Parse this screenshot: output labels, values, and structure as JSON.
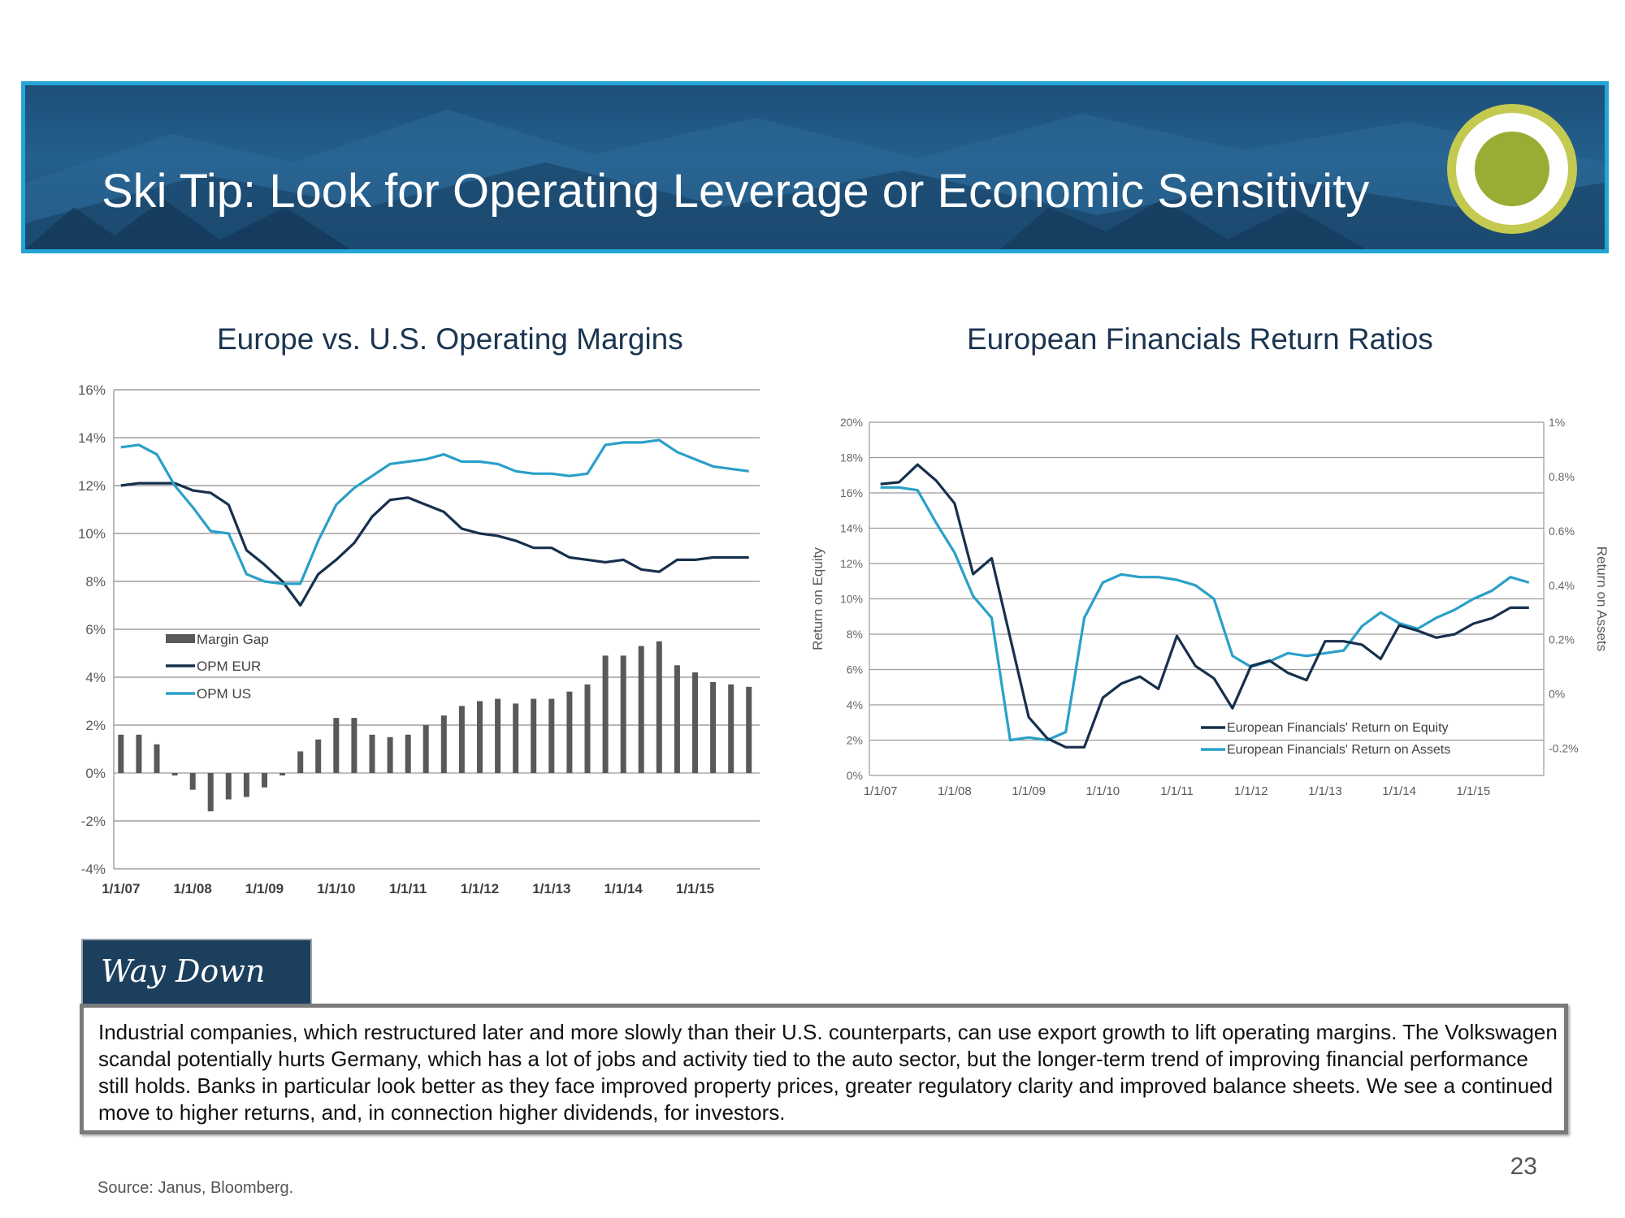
{
  "slide": {
    "title": "Ski Tip: Look for Operating Leverage or Economic Sensitivity",
    "label": "Way Down",
    "body": "Industrial companies, which restructured later and more slowly than their U.S. counterparts, can use export growth to lift operating margins. The Volkswagen scandal potentially hurts Germany, which has a lot of jobs and activity tied to the auto sector, but the longer-term trend of improving financial performance still holds. Banks in particular look better as they face improved property prices, greater regulatory clarity and improved balance sheets. We see a continued move to higher returns, and, in connection higher dividends, for investors.",
    "page_number": "23",
    "source": "Source: Janus, Bloomberg.",
    "colors": {
      "banner": "#1d4f79",
      "banner_border": "#23a6d5",
      "badge_ring": "#c3ca4f",
      "badge_dot": "#9aac33",
      "label_box": "#1d3f5e"
    }
  },
  "chart_data": [
    {
      "type": "line",
      "title": "Europe vs. U.S. Operating Margins",
      "ylim": [
        -4,
        16
      ],
      "y_ticks": [
        "16%",
        "14%",
        "12%",
        "10%",
        "8%",
        "6%",
        "4%",
        "2%",
        "0%",
        "-2%",
        "-4%"
      ],
      "x_ticks": [
        "1/1/07",
        "1/1/08",
        "1/1/09",
        "1/1/10",
        "1/1/11",
        "1/1/12",
        "1/1/13",
        "1/1/14",
        "1/1/15"
      ],
      "legend": [
        "Margin Gap",
        "OPM EUR",
        "OPM US"
      ],
      "legend_position": "center-left",
      "colors": {
        "Margin Gap": "#595959",
        "OPM EUR": "#16304d",
        "OPM US": "#2aa0c8"
      },
      "x": [
        2007.0,
        2007.25,
        2007.5,
        2007.75,
        2008.0,
        2008.25,
        2008.5,
        2008.75,
        2009.0,
        2009.25,
        2009.5,
        2009.75,
        2010.0,
        2010.25,
        2010.5,
        2010.75,
        2011.0,
        2011.25,
        2011.5,
        2011.75,
        2012.0,
        2012.25,
        2012.5,
        2012.75,
        2013.0,
        2013.25,
        2013.5,
        2013.75,
        2014.0,
        2014.25,
        2014.5,
        2014.75,
        2015.0,
        2015.25,
        2015.5,
        2015.75
      ],
      "series": [
        {
          "name": "OPM US",
          "values": [
            13.6,
            13.7,
            13.3,
            12.0,
            11.1,
            10.1,
            10.0,
            8.3,
            8.0,
            7.9,
            7.9,
            9.7,
            11.2,
            11.9,
            12.4,
            12.9,
            13.0,
            13.1,
            13.3,
            13.0,
            13.0,
            12.9,
            12.6,
            12.5,
            12.5,
            12.4,
            12.5,
            13.7,
            13.8,
            13.8,
            13.9,
            13.4,
            13.1,
            12.8,
            12.7,
            12.6
          ]
        },
        {
          "name": "OPM EUR",
          "values": [
            12.0,
            12.1,
            12.1,
            12.1,
            11.8,
            11.7,
            11.2,
            9.3,
            8.7,
            8.0,
            7.0,
            8.3,
            8.9,
            9.6,
            10.7,
            11.4,
            11.5,
            11.2,
            10.9,
            10.2,
            10.0,
            9.9,
            9.7,
            9.4,
            9.4,
            9.0,
            8.9,
            8.8,
            8.9,
            8.5,
            8.4,
            8.9,
            8.9,
            9.0,
            9.0,
            9.0
          ]
        },
        {
          "name": "Margin Gap",
          "values": [
            1.6,
            1.6,
            1.2,
            -0.1,
            -0.7,
            -1.6,
            -1.1,
            -1.0,
            -0.6,
            -0.1,
            0.9,
            1.4,
            2.3,
            2.3,
            1.6,
            1.5,
            1.6,
            2.0,
            2.4,
            2.8,
            3.0,
            3.1,
            2.9,
            3.1,
            3.1,
            3.4,
            3.7,
            4.9,
            4.9,
            5.3,
            5.5,
            4.5,
            4.2,
            3.8,
            3.7,
            3.6
          ]
        }
      ]
    },
    {
      "type": "line",
      "title": "European Financials Return Ratios",
      "ylabel": "Return on Equity",
      "ylabel_right": "Return on Assets",
      "ylim": [
        0,
        20
      ],
      "ylim_right": [
        -0.3,
        1.0
      ],
      "y_ticks": [
        "20%",
        "18%",
        "16%",
        "14%",
        "12%",
        "10%",
        "8%",
        "6%",
        "4%",
        "2%",
        "0%"
      ],
      "y_ticks_right": [
        "1%",
        "0.8%",
        "0.6%",
        "0.4%",
        "0.2%",
        "0%",
        "-0.2%"
      ],
      "x_ticks": [
        "1/1/07",
        "1/1/08",
        "1/1/09",
        "1/1/10",
        "1/1/11",
        "1/1/12",
        "1/1/13",
        "1/1/14",
        "1/1/15"
      ],
      "legend": [
        "European Financials' Return on Equity",
        "European Financials' Return on Assets"
      ],
      "legend_position": "bottom-center",
      "colors": {
        "European Financials' Return on Equity": "#16304d",
        "European Financials' Return on Assets": "#2aa0c8"
      },
      "x": [
        2007.0,
        2007.25,
        2007.5,
        2007.75,
        2008.0,
        2008.25,
        2008.5,
        2008.75,
        2009.0,
        2009.25,
        2009.5,
        2009.75,
        2010.0,
        2010.25,
        2010.5,
        2010.75,
        2011.0,
        2011.25,
        2011.5,
        2011.75,
        2012.0,
        2012.25,
        2012.5,
        2012.75,
        2013.0,
        2013.25,
        2013.5,
        2013.75,
        2014.0,
        2014.25,
        2014.5,
        2014.75,
        2015.0,
        2015.25,
        2015.5,
        2015.75
      ],
      "series": [
        {
          "name": "European Financials' Return on Equity",
          "axis": "left",
          "values": [
            16.5,
            16.6,
            17.6,
            16.7,
            15.4,
            11.4,
            12.3,
            7.8,
            3.3,
            2.1,
            1.6,
            1.6,
            4.4,
            5.2,
            5.6,
            4.9,
            7.9,
            6.2,
            5.5,
            3.8,
            6.2,
            6.5,
            5.8,
            5.4,
            7.6,
            7.6,
            7.4,
            6.6,
            8.5,
            8.2,
            7.8,
            8.0,
            8.6,
            8.9,
            9.5,
            9.5
          ]
        },
        {
          "name": "European Financials' Return on Assets",
          "axis": "right",
          "values": [
            0.76,
            0.76,
            0.75,
            0.63,
            0.52,
            0.36,
            0.28,
            -0.17,
            -0.16,
            -0.17,
            -0.14,
            0.28,
            0.41,
            0.44,
            0.43,
            0.43,
            0.42,
            0.4,
            0.35,
            0.14,
            0.1,
            0.12,
            0.15,
            0.14,
            0.15,
            0.16,
            0.25,
            0.3,
            0.26,
            0.24,
            0.28,
            0.31,
            0.35,
            0.38,
            0.43,
            0.41
          ]
        }
      ]
    }
  ]
}
